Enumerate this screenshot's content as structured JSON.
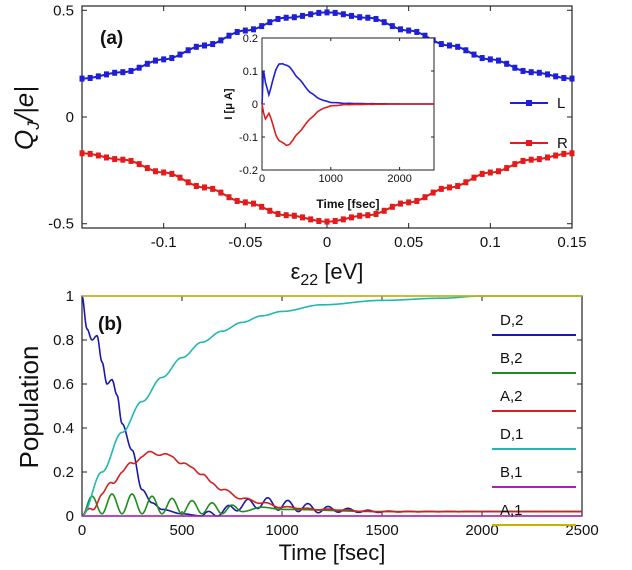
{
  "chart_data": [
    {
      "id": "a",
      "type": "line",
      "panel_label": "(a)",
      "xlabel": "ε22 [eV]",
      "xlabel_main": "ε",
      "xlabel_sub": "22",
      "xlabel_unit": " [eV]",
      "ylabel": "Q_J/|e|",
      "ylabel_main": "Q",
      "ylabel_sub": "J",
      "ylabel_rest": "/|e|",
      "xlim": [
        -0.15,
        0.15
      ],
      "ylim": [
        -0.52,
        0.52
      ],
      "xticks": [
        -0.1,
        -0.05,
        0,
        0.05,
        0.1,
        0.15
      ],
      "xtick_labels": [
        "-0.1",
        "-0.05",
        "0",
        "0.05",
        "0.1",
        "0.15"
      ],
      "yticks": [
        -0.5,
        0,
        0.5
      ],
      "ytick_labels": [
        "-0.5",
        "0",
        "0.5"
      ],
      "series": [
        {
          "name": "L",
          "color": "#1f1fd6",
          "x": [
            -0.15,
            -0.125,
            -0.1,
            -0.075,
            -0.05,
            -0.025,
            0,
            0.025,
            0.05,
            0.075,
            0.1,
            0.125,
            0.15
          ],
          "values": [
            0.18,
            0.21,
            0.27,
            0.335,
            0.405,
            0.465,
            0.49,
            0.465,
            0.405,
            0.335,
            0.27,
            0.21,
            0.18
          ]
        },
        {
          "name": "R",
          "color": "#e21b1b",
          "x": [
            -0.15,
            -0.125,
            -0.1,
            -0.075,
            -0.05,
            -0.025,
            0,
            0.025,
            0.05,
            0.075,
            0.1,
            0.125,
            0.15
          ],
          "values": [
            -0.17,
            -0.2,
            -0.26,
            -0.33,
            -0.4,
            -0.46,
            -0.49,
            -0.46,
            -0.4,
            -0.33,
            -0.26,
            -0.2,
            -0.17
          ]
        }
      ],
      "legend": [
        "L",
        "R"
      ],
      "legend_position": "right"
    },
    {
      "id": "a-inset",
      "type": "line",
      "xlabel": "Time [fsec]",
      "ylabel": "I [μ A]",
      "xlim": [
        0,
        2500
      ],
      "ylim": [
        -0.2,
        0.2
      ],
      "xticks": [
        0,
        1000,
        2000
      ],
      "xtick_labels": [
        "0",
        "1000",
        "2000"
      ],
      "yticks": [
        -0.2,
        -0.1,
        0,
        0.1,
        0.2
      ],
      "ytick_labels": [
        "-0.2",
        "-0.1",
        "0",
        "0.1",
        "0.2"
      ],
      "series": [
        {
          "name": "L",
          "color": "#1f1fd6",
          "x": [
            0,
            20,
            50,
            100,
            150,
            200,
            250,
            300,
            350,
            400,
            450,
            500,
            600,
            700,
            800,
            900,
            1000,
            1200,
            1500,
            2000,
            2500
          ],
          "values": [
            0.0,
            0.1,
            0.06,
            0.03,
            0.07,
            0.1,
            0.12,
            0.125,
            0.118,
            0.11,
            0.1,
            0.085,
            0.06,
            0.035,
            0.02,
            0.01,
            0.005,
            0.002,
            0.001,
            0.0,
            0.0
          ]
        },
        {
          "name": "R",
          "color": "#e21b1b",
          "x": [
            0,
            20,
            50,
            100,
            150,
            200,
            250,
            300,
            350,
            400,
            450,
            500,
            600,
            700,
            800,
            900,
            1000,
            1200,
            1500,
            2000,
            2500
          ],
          "values": [
            0.0,
            -0.02,
            -0.04,
            -0.03,
            -0.06,
            -0.09,
            -0.11,
            -0.12,
            -0.125,
            -0.12,
            -0.11,
            -0.095,
            -0.07,
            -0.045,
            -0.025,
            -0.012,
            -0.006,
            -0.002,
            -0.001,
            0.0,
            0.0
          ]
        }
      ]
    },
    {
      "id": "b",
      "type": "line",
      "panel_label": "(b)",
      "xlabel": "Time [fsec]",
      "ylabel": "Population",
      "xlim": [
        0,
        2500
      ],
      "ylim": [
        0,
        1
      ],
      "xticks": [
        0,
        500,
        1000,
        1500,
        2000,
        2500
      ],
      "xtick_labels": [
        "0",
        "500",
        "1000",
        "1500",
        "2000",
        "2500"
      ],
      "yticks": [
        0,
        0.2,
        0.4,
        0.6,
        0.8,
        1
      ],
      "ytick_labels": [
        "0",
        "0.2",
        "0.4",
        "0.6",
        "0.8",
        "1"
      ],
      "series": [
        {
          "name": "D,2",
          "color": "#1a1aa8",
          "x": [
            0,
            25,
            50,
            75,
            100,
            125,
            150,
            175,
            200,
            250,
            300,
            350,
            400,
            500,
            600,
            700,
            800,
            900,
            1000,
            1100,
            1200,
            1500,
            2000,
            2500
          ],
          "values": [
            1.0,
            0.85,
            0.8,
            0.82,
            0.7,
            0.6,
            0.62,
            0.55,
            0.42,
            0.3,
            0.12,
            0.06,
            0.03,
            0.01,
            0.0,
            0.02,
            0.05,
            0.06,
            0.05,
            0.04,
            0.03,
            0.02,
            0.02,
            0.02
          ]
        },
        {
          "name": "B,2",
          "color": "#1e8c1e",
          "x": [
            0,
            50,
            100,
            150,
            200,
            250,
            300,
            350,
            400,
            450,
            500,
            550,
            600,
            650,
            700,
            750,
            800,
            900,
            1000,
            1500,
            2000,
            2500
          ],
          "values": [
            0.0,
            0.09,
            0.01,
            0.1,
            0.01,
            0.1,
            0.01,
            0.09,
            0.01,
            0.08,
            0.01,
            0.07,
            0.01,
            0.06,
            0.01,
            0.05,
            0.02,
            0.04,
            0.03,
            0.02,
            0.02,
            0.02
          ]
        },
        {
          "name": "A,2",
          "color": "#d42020",
          "x": [
            0,
            50,
            100,
            150,
            200,
            250,
            300,
            350,
            400,
            450,
            500,
            550,
            600,
            650,
            700,
            800,
            900,
            1000,
            1200,
            1500,
            2000,
            2500
          ],
          "values": [
            0.0,
            0.03,
            0.1,
            0.15,
            0.2,
            0.24,
            0.27,
            0.29,
            0.28,
            0.27,
            0.24,
            0.22,
            0.19,
            0.15,
            0.12,
            0.08,
            0.06,
            0.04,
            0.03,
            0.02,
            0.02,
            0.02
          ]
        },
        {
          "name": "D,1",
          "color": "#20b8b0",
          "x": [
            0,
            100,
            200,
            300,
            400,
            500,
            600,
            700,
            800,
            900,
            1000,
            1200,
            1500,
            1800,
            2000,
            2500
          ],
          "values": [
            0.0,
            0.2,
            0.38,
            0.52,
            0.63,
            0.72,
            0.79,
            0.84,
            0.88,
            0.91,
            0.93,
            0.96,
            0.98,
            0.99,
            1.0,
            1.0
          ]
        },
        {
          "name": "B,1",
          "color": "#b020b0",
          "x": [
            0,
            2500
          ],
          "values": [
            0.0,
            0.0
          ]
        },
        {
          "name": "A,1",
          "color": "#c8b400",
          "x": [
            0,
            2500
          ],
          "values": [
            1.0,
            1.0
          ]
        }
      ],
      "legend": [
        "D,2",
        "B,2",
        "A,2",
        "D,1",
        "B,1",
        "A,1"
      ],
      "legend_position": "right"
    }
  ]
}
